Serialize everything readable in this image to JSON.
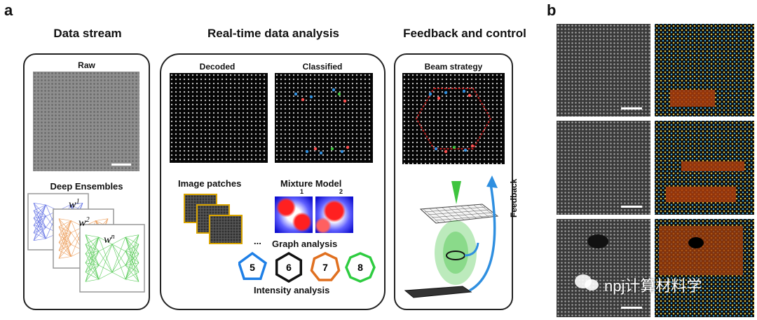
{
  "panel_a": {
    "letter": "a",
    "columns": {
      "data_stream": "Data stream",
      "analysis": "Real-time data analysis",
      "feedback": "Feedback and control"
    },
    "raw_label": "Raw",
    "deep_ensembles_label": "Deep Ensembles",
    "weights": [
      "w",
      "w",
      "w"
    ],
    "weight_superscripts": [
      "1",
      "2",
      "n"
    ],
    "decoded_label": "Decoded",
    "classified_label": "Classified",
    "image_patches_label": "Image patches",
    "mixture_model_label": "Mixture Model",
    "mixture_components": [
      "1",
      "2"
    ],
    "ellipsis": "...",
    "graph_analysis_label": "Graph analysis",
    "intensity_analysis_label": "Intensity analysis",
    "polygons": [
      {
        "label": "5",
        "color": "#1e7fe6"
      },
      {
        "label": "6",
        "color": "#111111"
      },
      {
        "label": "7",
        "color": "#e07020"
      },
      {
        "label": "8",
        "color": "#2ecc40"
      }
    ],
    "beam_strategy_label": "Beam strategy",
    "feedback_label": "Feedback"
  },
  "panel_b": {
    "letter": "b"
  },
  "watermark": {
    "text": "npj计算材料学"
  },
  "colors": {
    "beam_green": "#3ec43e",
    "feedback_arrow": "#2f8fe0",
    "ensemble_blue": "#4a5be0",
    "ensemble_orange": "#e88a3a",
    "ensemble_green": "#3cc23c",
    "hexagon_red": "#b82020"
  }
}
